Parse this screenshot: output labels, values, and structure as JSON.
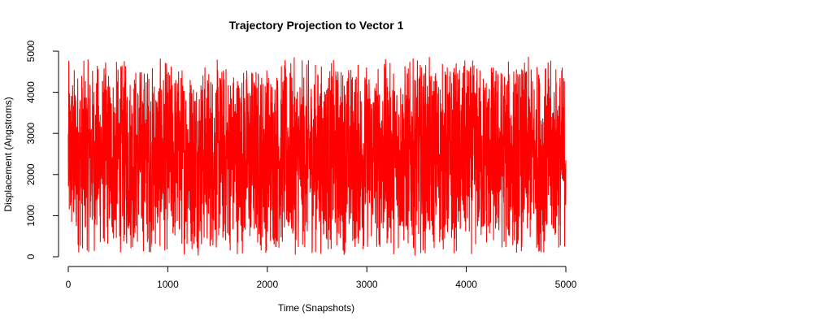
{
  "chart_data": {
    "type": "line",
    "title": "Trajectory Projection to Vector 1",
    "xlabel": "Time (Snapshots)",
    "ylabel": "Displacement (Angstroms)",
    "xlim": [
      0,
      5000
    ],
    "ylim": [
      0,
      5000
    ],
    "xticks": [
      "0",
      "1000",
      "2000",
      "3000",
      "4000",
      "5000"
    ],
    "yticks": [
      "0",
      "1000",
      "2000",
      "3000",
      "4000",
      "5000"
    ],
    "grid": false,
    "series": [
      {
        "color": "#ff0000",
        "x_range": [
          0,
          5000
        ],
        "value_range": [
          0,
          4900
        ],
        "envelope": {
          "x": [
            0,
            500,
            1000,
            1500,
            2000,
            2500,
            3000,
            3500,
            4000,
            4500,
            5000
          ],
          "max": [
            4850,
            4880,
            4870,
            4880,
            4870,
            4880,
            4870,
            4880,
            4860,
            4880,
            4860
          ],
          "min": [
            0,
            20,
            0,
            10,
            20,
            0,
            10,
            20,
            0,
            10,
            50
          ]
        }
      }
    ]
  }
}
